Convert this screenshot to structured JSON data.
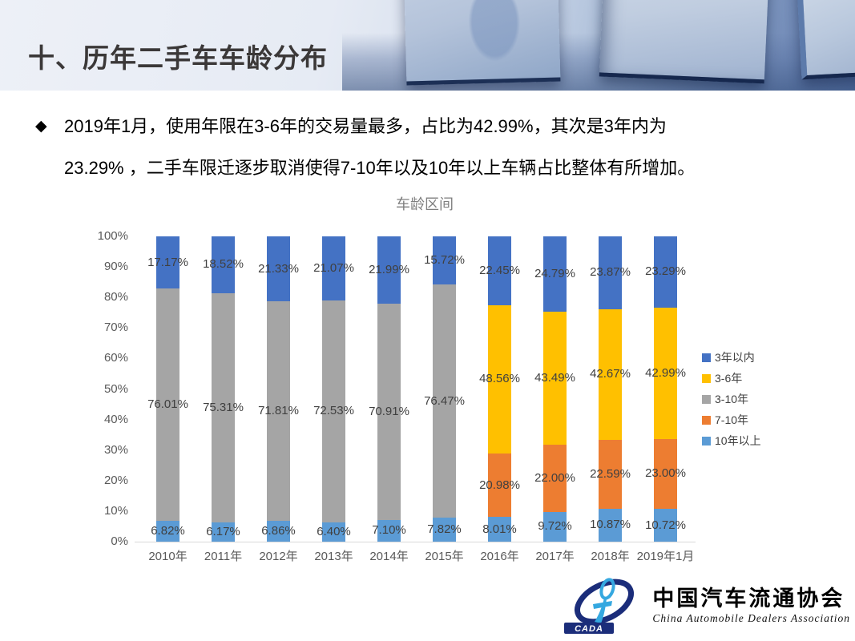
{
  "slide": {
    "header": {
      "title": "十、历年二手车车龄分布"
    },
    "bullet": {
      "marker": "◆",
      "lines": [
        "2019年1月，使用年限在3-6年的交易量最多，占比为42.99%，其次是3年内为",
        "23.29% ，二手车限迁逐步取消使得7-10年以及10年以上车辆占比整体有所增加。"
      ]
    }
  },
  "chart_data": {
    "type": "bar",
    "stacked": true,
    "title": "车龄区间",
    "categories": [
      "2010年",
      "2011年",
      "2012年",
      "2013年",
      "2014年",
      "2015年",
      "2016年",
      "2017年",
      "2018年",
      "2019年1月"
    ],
    "series": [
      {
        "name": "10年以上",
        "color": "#5B9BD5",
        "values": [
          6.82,
          6.17,
          6.86,
          6.4,
          7.1,
          7.82,
          8.01,
          9.72,
          10.87,
          10.72
        ]
      },
      {
        "name": "7-10年",
        "color": "#ED7D31",
        "values": [
          0,
          0,
          0,
          0,
          0,
          0,
          20.98,
          22.0,
          22.59,
          23.0
        ]
      },
      {
        "name": "3-10年",
        "color": "#A5A5A5",
        "values": [
          76.01,
          75.31,
          71.81,
          72.53,
          70.91,
          76.47,
          0,
          0,
          0,
          0
        ]
      },
      {
        "name": "3-6年",
        "color": "#FFC000",
        "values": [
          0,
          0,
          0,
          0,
          0,
          0,
          48.56,
          43.49,
          42.67,
          42.99
        ]
      },
      {
        "name": "3年以内",
        "color": "#4472C4",
        "values": [
          17.17,
          18.52,
          21.33,
          21.07,
          21.99,
          15.72,
          22.45,
          24.79,
          23.87,
          23.29
        ]
      }
    ],
    "legend": [
      {
        "label": "3年以内",
        "color": "#4472C4"
      },
      {
        "label": "3-6年",
        "color": "#FFC000"
      },
      {
        "label": "3-10年",
        "color": "#A5A5A5"
      },
      {
        "label": "7-10年",
        "color": "#ED7D31"
      },
      {
        "label": "10年以上",
        "color": "#5B9BD5"
      }
    ],
    "y_ticks": [
      "100%",
      "90%",
      "80%",
      "70%",
      "60%",
      "50%",
      "40%",
      "30%",
      "20%",
      "10%",
      "0%"
    ],
    "ylim": [
      0,
      100
    ],
    "grid": false,
    "legend_position": "right",
    "label_format": "0.00%",
    "label_color": "#404040",
    "axis_color": "#595959"
  },
  "footer": {
    "logo_text": "CADA",
    "org_name_cn": "中国汽车流通协会",
    "org_name_en": "China Automobile Dealers Association"
  }
}
